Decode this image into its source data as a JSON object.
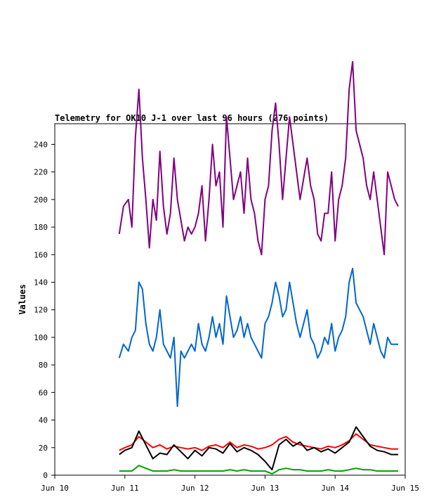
{
  "chart_data": {
    "type": "line",
    "title": "Telemetry for OK10 J-1 over last 96 hours (276 points)",
    "xlabel": "",
    "ylabel": "Values",
    "x_unit": "days from Jun 10 00:00",
    "x_ticks": [
      {
        "value": 0,
        "label": "Jun 10"
      },
      {
        "value": 1,
        "label": "Jun 11"
      },
      {
        "value": 2,
        "label": "Jun 12"
      },
      {
        "value": 3,
        "label": "Jun 13"
      },
      {
        "value": 4,
        "label": "Jun 14"
      },
      {
        "value": 5,
        "label": "Jun 15"
      }
    ],
    "xlim": [
      0,
      5
    ],
    "ylim": [
      0,
      255
    ],
    "y_ticks": [
      0,
      20,
      40,
      60,
      80,
      100,
      120,
      140,
      160,
      180,
      200,
      220,
      240
    ],
    "grid": false,
    "series": [
      {
        "color": "#800080",
        "x": [
          0.92,
          0.98,
          1.05,
          1.1,
          1.15,
          1.2,
          1.25,
          1.3,
          1.35,
          1.4,
          1.45,
          1.5,
          1.55,
          1.6,
          1.65,
          1.7,
          1.75,
          1.8,
          1.85,
          1.9,
          1.95,
          2.0,
          2.05,
          2.1,
          2.15,
          2.2,
          2.25,
          2.3,
          2.35,
          2.4,
          2.45,
          2.5,
          2.55,
          2.6,
          2.65,
          2.7,
          2.75,
          2.8,
          2.85,
          2.9,
          2.95,
          3.0,
          3.05,
          3.1,
          3.15,
          3.2,
          3.25,
          3.3,
          3.35,
          3.4,
          3.45,
          3.5,
          3.55,
          3.6,
          3.65,
          3.7,
          3.75,
          3.8,
          3.85,
          3.9,
          3.95,
          4.0,
          4.05,
          4.1,
          4.15,
          4.2,
          4.25,
          4.3,
          4.35,
          4.4,
          4.45,
          4.5,
          4.55,
          4.6,
          4.65,
          4.7,
          4.75,
          4.8,
          4.85,
          4.9
        ],
        "values": [
          175,
          195,
          200,
          180,
          245,
          280,
          230,
          200,
          165,
          200,
          185,
          235,
          195,
          175,
          190,
          230,
          200,
          185,
          170,
          180,
          175,
          180,
          190,
          210,
          170,
          200,
          240,
          210,
          220,
          180,
          260,
          230,
          200,
          210,
          220,
          190,
          230,
          200,
          190,
          170,
          160,
          200,
          210,
          250,
          270,
          240,
          200,
          230,
          260,
          240,
          220,
          200,
          215,
          230,
          210,
          200,
          175,
          170,
          190,
          190,
          220,
          170,
          200,
          210,
          230,
          280,
          300,
          250,
          240,
          230,
          210,
          200,
          220,
          200,
          180,
          160,
          220,
          210,
          200,
          195
        ]
      },
      {
        "color": "#0066cc",
        "x": [
          0.92,
          0.98,
          1.05,
          1.1,
          1.15,
          1.2,
          1.25,
          1.3,
          1.35,
          1.4,
          1.45,
          1.5,
          1.55,
          1.6,
          1.65,
          1.7,
          1.75,
          1.8,
          1.85,
          1.9,
          1.95,
          2.0,
          2.05,
          2.1,
          2.15,
          2.2,
          2.25,
          2.3,
          2.35,
          2.4,
          2.45,
          2.5,
          2.55,
          2.6,
          2.65,
          2.7,
          2.75,
          2.8,
          2.85,
          2.9,
          2.95,
          3.0,
          3.05,
          3.1,
          3.15,
          3.2,
          3.25,
          3.3,
          3.35,
          3.4,
          3.45,
          3.5,
          3.55,
          3.6,
          3.65,
          3.7,
          3.75,
          3.8,
          3.85,
          3.9,
          3.95,
          4.0,
          4.05,
          4.1,
          4.15,
          4.2,
          4.25,
          4.3,
          4.35,
          4.4,
          4.45,
          4.5,
          4.55,
          4.6,
          4.65,
          4.7,
          4.75,
          4.8,
          4.85,
          4.9
        ],
        "values": [
          85,
          95,
          90,
          100,
          105,
          140,
          135,
          110,
          95,
          90,
          100,
          120,
          95,
          90,
          85,
          100,
          50,
          90,
          85,
          90,
          95,
          90,
          110,
          95,
          90,
          100,
          115,
          100,
          110,
          95,
          130,
          115,
          100,
          105,
          115,
          100,
          110,
          100,
          95,
          90,
          85,
          110,
          115,
          125,
          140,
          130,
          115,
          120,
          140,
          125,
          110,
          100,
          110,
          120,
          100,
          95,
          85,
          90,
          100,
          95,
          110,
          90,
          100,
          105,
          115,
          140,
          150,
          125,
          120,
          115,
          105,
          95,
          110,
          100,
          90,
          85,
          100,
          95,
          95,
          95
        ]
      },
      {
        "color": "#ff0000",
        "x": [
          0.92,
          1.0,
          1.1,
          1.2,
          1.3,
          1.4,
          1.5,
          1.6,
          1.7,
          1.8,
          1.9,
          2.0,
          2.1,
          2.2,
          2.3,
          2.4,
          2.5,
          2.6,
          2.7,
          2.8,
          2.9,
          3.0,
          3.1,
          3.2,
          3.3,
          3.4,
          3.5,
          3.6,
          3.7,
          3.8,
          3.9,
          4.0,
          4.1,
          4.2,
          4.3,
          4.4,
          4.5,
          4.6,
          4.7,
          4.8,
          4.9
        ],
        "values": [
          18,
          20,
          22,
          28,
          24,
          20,
          22,
          19,
          21,
          20,
          19,
          20,
          18,
          21,
          22,
          20,
          24,
          20,
          22,
          21,
          19,
          20,
          22,
          26,
          28,
          24,
          22,
          21,
          20,
          19,
          21,
          20,
          22,
          25,
          30,
          26,
          22,
          21,
          20,
          19,
          19
        ]
      },
      {
        "color": "#000000",
        "x": [
          0.92,
          1.0,
          1.1,
          1.2,
          1.3,
          1.4,
          1.5,
          1.6,
          1.7,
          1.8,
          1.9,
          2.0,
          2.1,
          2.2,
          2.3,
          2.4,
          2.5,
          2.6,
          2.7,
          2.8,
          2.9,
          3.0,
          3.1,
          3.2,
          3.3,
          3.4,
          3.5,
          3.6,
          3.7,
          3.8,
          3.9,
          4.0,
          4.1,
          4.2,
          4.3,
          4.4,
          4.5,
          4.6,
          4.7,
          4.8,
          4.9
        ],
        "values": [
          15,
          18,
          20,
          32,
          22,
          12,
          16,
          15,
          22,
          17,
          12,
          18,
          14,
          20,
          19,
          16,
          23,
          17,
          20,
          18,
          15,
          10,
          4,
          22,
          26,
          21,
          24,
          18,
          20,
          17,
          19,
          16,
          20,
          24,
          35,
          28,
          21,
          18,
          17,
          15,
          15
        ]
      },
      {
        "color": "#00a000",
        "x": [
          0.92,
          1.0,
          1.1,
          1.2,
          1.3,
          1.4,
          1.5,
          1.6,
          1.7,
          1.8,
          1.9,
          2.0,
          2.1,
          2.2,
          2.3,
          2.4,
          2.5,
          2.6,
          2.7,
          2.8,
          2.9,
          3.0,
          3.1,
          3.2,
          3.3,
          3.4,
          3.5,
          3.6,
          3.7,
          3.8,
          3.9,
          4.0,
          4.1,
          4.2,
          4.3,
          4.4,
          4.5,
          4.6,
          4.7,
          4.8,
          4.9
        ],
        "values": [
          3,
          3,
          3,
          7,
          5,
          3,
          3,
          3,
          4,
          3,
          3,
          3,
          3,
          3,
          3,
          3,
          4,
          3,
          4,
          3,
          3,
          3,
          1,
          4,
          5,
          4,
          4,
          3,
          3,
          3,
          4,
          3,
          3,
          4,
          5,
          4,
          4,
          3,
          3,
          3,
          3
        ]
      }
    ]
  }
}
